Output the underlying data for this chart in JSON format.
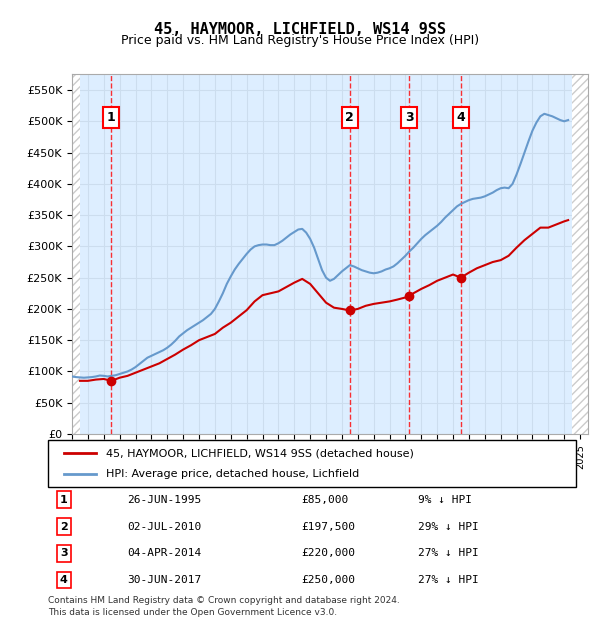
{
  "title": "45, HAYMOOR, LICHFIELD, WS14 9SS",
  "subtitle": "Price paid vs. HM Land Registry's House Price Index (HPI)",
  "ylabel": "",
  "ylim": [
    0,
    575000
  ],
  "yticks": [
    0,
    50000,
    100000,
    150000,
    200000,
    250000,
    300000,
    350000,
    400000,
    450000,
    500000,
    550000
  ],
  "xlim_start": 1993.0,
  "xlim_end": 2025.5,
  "legend_line1": "45, HAYMOOR, LICHFIELD, WS14 9SS (detached house)",
  "legend_line2": "HPI: Average price, detached house, Lichfield",
  "footer1": "Contains HM Land Registry data © Crown copyright and database right 2024.",
  "footer2": "This data is licensed under the Open Government Licence v3.0.",
  "sales": [
    {
      "num": 1,
      "date": "26-JUN-1995",
      "price": 85000,
      "pct": "9% ↓ HPI",
      "year": 1995.48
    },
    {
      "num": 2,
      "date": "02-JUL-2010",
      "price": 197500,
      "pct": "29% ↓ HPI",
      "year": 2010.5
    },
    {
      "num": 3,
      "date": "04-APR-2014",
      "price": 220000,
      "pct": "27% ↓ HPI",
      "year": 2014.25
    },
    {
      "num": 4,
      "date": "30-JUN-2017",
      "price": 250000,
      "pct": "27% ↓ HPI",
      "year": 2017.49
    }
  ],
  "hpi_color": "#6699cc",
  "price_color": "#cc0000",
  "hatch_color": "#cccccc",
  "grid_color": "#ccddee",
  "background_color": "#ddeeff",
  "hpi_data": {
    "years": [
      1993.0,
      1993.25,
      1993.5,
      1993.75,
      1994.0,
      1994.25,
      1994.5,
      1994.75,
      1995.0,
      1995.25,
      1995.5,
      1995.75,
      1996.0,
      1996.25,
      1996.5,
      1996.75,
      1997.0,
      1997.25,
      1997.5,
      1997.75,
      1998.0,
      1998.25,
      1998.5,
      1998.75,
      1999.0,
      1999.25,
      1999.5,
      1999.75,
      2000.0,
      2000.25,
      2000.5,
      2000.75,
      2001.0,
      2001.25,
      2001.5,
      2001.75,
      2002.0,
      2002.25,
      2002.5,
      2002.75,
      2003.0,
      2003.25,
      2003.5,
      2003.75,
      2004.0,
      2004.25,
      2004.5,
      2004.75,
      2005.0,
      2005.25,
      2005.5,
      2005.75,
      2006.0,
      2006.25,
      2006.5,
      2006.75,
      2007.0,
      2007.25,
      2007.5,
      2007.75,
      2008.0,
      2008.25,
      2008.5,
      2008.75,
      2009.0,
      2009.25,
      2009.5,
      2009.75,
      2010.0,
      2010.25,
      2010.5,
      2010.75,
      2011.0,
      2011.25,
      2011.5,
      2011.75,
      2012.0,
      2012.25,
      2012.5,
      2012.75,
      2013.0,
      2013.25,
      2013.5,
      2013.75,
      2014.0,
      2014.25,
      2014.5,
      2014.75,
      2015.0,
      2015.25,
      2015.5,
      2015.75,
      2016.0,
      2016.25,
      2016.5,
      2016.75,
      2017.0,
      2017.25,
      2017.5,
      2017.75,
      2018.0,
      2018.25,
      2018.5,
      2018.75,
      2019.0,
      2019.25,
      2019.5,
      2019.75,
      2020.0,
      2020.25,
      2020.5,
      2020.75,
      2021.0,
      2021.25,
      2021.5,
      2021.75,
      2022.0,
      2022.25,
      2022.5,
      2022.75,
      2023.0,
      2023.25,
      2023.5,
      2023.75,
      2024.0,
      2024.25
    ],
    "values": [
      92000,
      91000,
      90500,
      90000,
      90500,
      91000,
      92000,
      93500,
      93000,
      92000,
      93000,
      94000,
      96000,
      98000,
      100000,
      103000,
      107000,
      112000,
      117000,
      122000,
      125000,
      128000,
      131000,
      134000,
      138000,
      143000,
      149000,
      156000,
      161000,
      166000,
      170000,
      174000,
      178000,
      182000,
      187000,
      192000,
      200000,
      212000,
      225000,
      240000,
      252000,
      263000,
      272000,
      280000,
      288000,
      295000,
      300000,
      302000,
      303000,
      303000,
      302000,
      302000,
      305000,
      309000,
      314000,
      319000,
      323000,
      327000,
      328000,
      322000,
      312000,
      298000,
      280000,
      262000,
      250000,
      245000,
      248000,
      254000,
      260000,
      265000,
      270000,
      268000,
      265000,
      262000,
      260000,
      258000,
      257000,
      258000,
      260000,
      263000,
      265000,
      268000,
      273000,
      279000,
      285000,
      292000,
      298000,
      305000,
      312000,
      318000,
      323000,
      328000,
      333000,
      339000,
      346000,
      352000,
      358000,
      364000,
      368000,
      371000,
      374000,
      376000,
      377000,
      378000,
      380000,
      383000,
      386000,
      390000,
      393000,
      394000,
      393000,
      400000,
      415000,
      432000,
      450000,
      468000,
      485000,
      498000,
      508000,
      512000,
      510000,
      508000,
      505000,
      502000,
      500000,
      502000
    ]
  },
  "price_data": {
    "years": [
      1993.5,
      1994.0,
      1994.5,
      1995.0,
      1995.48,
      1996.0,
      1996.5,
      1997.0,
      1997.5,
      1998.0,
      1998.5,
      1999.0,
      1999.5,
      2000.0,
      2000.5,
      2001.0,
      2001.5,
      2002.0,
      2002.5,
      2003.0,
      2003.5,
      2004.0,
      2004.5,
      2005.0,
      2005.5,
      2006.0,
      2006.5,
      2007.0,
      2007.5,
      2008.0,
      2008.5,
      2009.0,
      2009.5,
      2010.0,
      2010.5,
      2011.0,
      2011.5,
      2012.0,
      2012.5,
      2013.0,
      2013.5,
      2014.25,
      2014.5,
      2015.0,
      2015.5,
      2016.0,
      2016.5,
      2017.0,
      2017.49,
      2018.0,
      2018.5,
      2019.0,
      2019.5,
      2020.0,
      2020.5,
      2021.0,
      2021.5,
      2022.0,
      2022.5,
      2023.0,
      2023.5,
      2024.0,
      2024.25
    ],
    "values": [
      85000,
      85000,
      87000,
      88000,
      85000,
      90000,
      93000,
      98000,
      103000,
      108000,
      113000,
      120000,
      127000,
      135000,
      142000,
      150000,
      155000,
      160000,
      170000,
      178000,
      188000,
      198000,
      212000,
      222000,
      225000,
      228000,
      235000,
      242000,
      248000,
      240000,
      225000,
      210000,
      202000,
      200000,
      197500,
      200000,
      205000,
      208000,
      210000,
      212000,
      215000,
      220000,
      225000,
      232000,
      238000,
      245000,
      250000,
      255000,
      250000,
      258000,
      265000,
      270000,
      275000,
      278000,
      285000,
      298000,
      310000,
      320000,
      330000,
      330000,
      335000,
      340000,
      342000
    ]
  }
}
